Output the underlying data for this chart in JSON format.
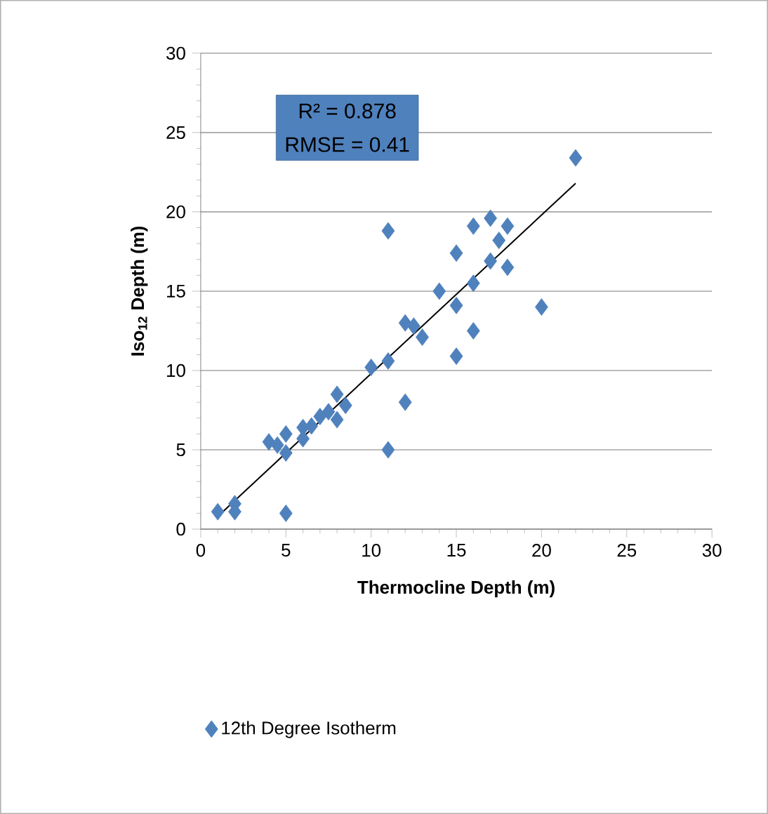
{
  "chart_data": {
    "type": "scatter",
    "xlabel": "Thermocline Depth (m)",
    "ylabel": "Iso$_{12}$ Depth (m)",
    "xlim": [
      0,
      30
    ],
    "ylim": [
      0,
      30
    ],
    "xticks": [
      0,
      5,
      10,
      15,
      20,
      25,
      30
    ],
    "yticks": [
      0,
      5,
      10,
      15,
      20,
      25,
      30
    ],
    "grid": "y",
    "legend": "bottom",
    "marker": "diamond",
    "annotations": [
      "R² = 0.878",
      "RMSE = 0.41"
    ],
    "series": [
      {
        "name": "12th Degree Isotherm",
        "color": "#4f81bd",
        "x": [
          1,
          2,
          2,
          5,
          4,
          4.5,
          5,
          5,
          6,
          6,
          6.5,
          7,
          7.5,
          8,
          8,
          8.5,
          10,
          11,
          11,
          11,
          12,
          12,
          12.5,
          13,
          14,
          15,
          15,
          15,
          16,
          16,
          16,
          17,
          17,
          17.5,
          18,
          18,
          20,
          22
        ],
        "values": [
          1.1,
          1.6,
          1.1,
          1.0,
          5.5,
          5.3,
          6.0,
          4.8,
          5.7,
          6.4,
          6.5,
          7.1,
          7.4,
          8.5,
          6.9,
          7.8,
          10.2,
          10.6,
          18.8,
          5.0,
          8.0,
          13.0,
          12.8,
          12.1,
          15.0,
          17.4,
          14.1,
          10.9,
          19.1,
          15.5,
          12.5,
          16.9,
          19.6,
          18.2,
          19.1,
          16.5,
          14.0,
          23.4
        ]
      },
      {
        "type": "line",
        "color": "#000000",
        "line_style": "solid",
        "marker": "none",
        "x": [
          1,
          22
        ],
        "values": [
          0.8,
          21.8
        ]
      }
    ]
  }
}
